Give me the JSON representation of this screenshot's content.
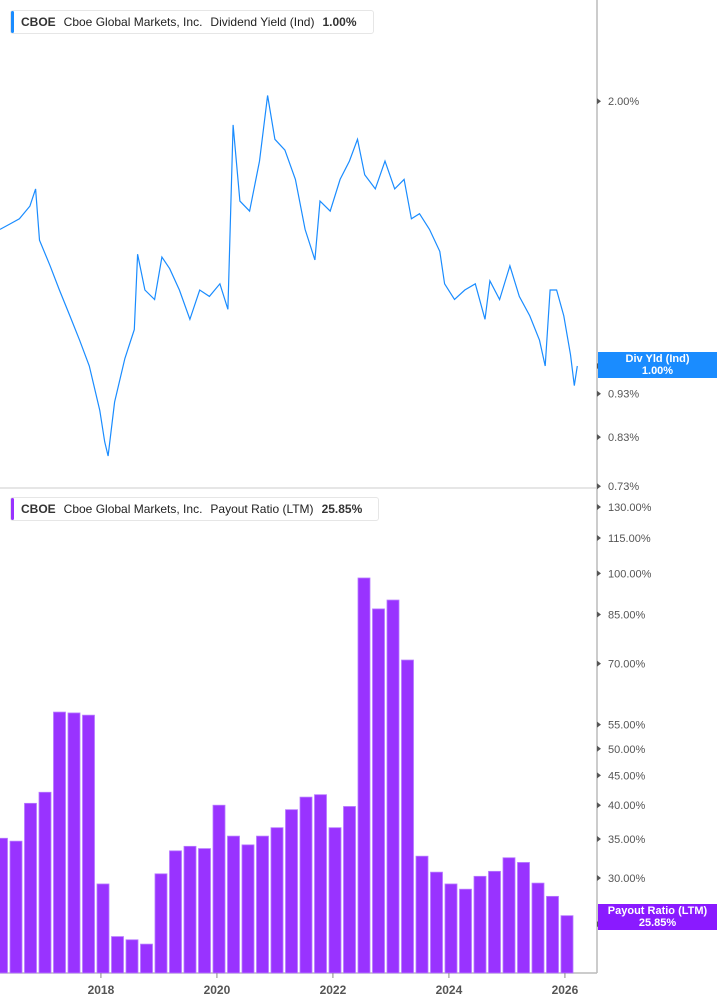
{
  "top_legend": {
    "ticker": "CBOE",
    "company": "Cboe Global Markets, Inc.",
    "metric": "Dividend Yield (Ind)",
    "value": "1.00%",
    "color": "#1a8cff"
  },
  "bottom_legend": {
    "ticker": "CBOE",
    "company": "Cboe Global Markets, Inc.",
    "metric": "Payout Ratio (LTM)",
    "value": "25.85%",
    "color": "#9933ff"
  },
  "top_tag": {
    "label": "Div Yld (Ind)",
    "value": "1.00%"
  },
  "bottom_tag": {
    "label": "Payout Ratio (LTM)",
    "value": "25.85%"
  },
  "chart_data": [
    {
      "type": "line",
      "scale": "log",
      "ylim": [
        0.73,
        2.1
      ],
      "yticks": [
        {
          "v": 2.0,
          "label": "2.00%"
        },
        {
          "v": 1.0,
          "label": "1.00%"
        },
        {
          "v": 0.93,
          "label": "0.93%"
        },
        {
          "v": 0.83,
          "label": "0.83%"
        },
        {
          "v": 0.73,
          "label": "0.73%"
        }
      ],
      "series": [
        {
          "name": "Dividend Yield (Ind)",
          "color": "#1a8cff",
          "points": [
            [
              "2016-04-05",
              1.43
            ],
            [
              "2016-06-05",
              1.45
            ],
            [
              "2016-08-05",
              1.47
            ],
            [
              "2016-10-10",
              1.52
            ],
            [
              "2016-11-15",
              1.59
            ],
            [
              "2016-12-10",
              1.39
            ],
            [
              "2017-02-15",
              1.3
            ],
            [
              "2017-04-15",
              1.22
            ],
            [
              "2017-06-20",
              1.14
            ],
            [
              "2017-08-20",
              1.07
            ],
            [
              "2017-10-20",
              1.0
            ],
            [
              "2017-12-25",
              0.89
            ],
            [
              "2018-01-25",
              0.82
            ],
            [
              "2018-02-15",
              0.79
            ],
            [
              "2018-03-28",
              0.91
            ],
            [
              "2018-06-01",
              1.02
            ],
            [
              "2018-07-30",
              1.1
            ],
            [
              "2018-08-20",
              1.34
            ],
            [
              "2018-10-05",
              1.22
            ],
            [
              "2018-12-05",
              1.19
            ],
            [
              "2019-01-20",
              1.33
            ],
            [
              "2019-03-10",
              1.29
            ],
            [
              "2019-05-10",
              1.22
            ],
            [
              "2019-07-15",
              1.13
            ],
            [
              "2019-09-15",
              1.22
            ],
            [
              "2019-11-15",
              1.2
            ],
            [
              "2020-01-20",
              1.24
            ],
            [
              "2020-03-10",
              1.16
            ],
            [
              "2020-04-12",
              1.88
            ],
            [
              "2020-05-25",
              1.54
            ],
            [
              "2020-07-25",
              1.5
            ],
            [
              "2020-09-25",
              1.71
            ],
            [
              "2020-11-15",
              2.03
            ],
            [
              "2021-01-01",
              1.81
            ],
            [
              "2021-03-05",
              1.76
            ],
            [
              "2021-05-10",
              1.63
            ],
            [
              "2021-07-10",
              1.43
            ],
            [
              "2021-09-10",
              1.32
            ],
            [
              "2021-10-12",
              1.54
            ],
            [
              "2021-12-15",
              1.5
            ],
            [
              "2022-02-15",
              1.63
            ],
            [
              "2022-04-15",
              1.71
            ],
            [
              "2022-06-05",
              1.81
            ],
            [
              "2022-07-20",
              1.65
            ],
            [
              "2022-09-25",
              1.59
            ],
            [
              "2022-11-25",
              1.71
            ],
            [
              "2023-01-25",
              1.59
            ],
            [
              "2023-03-25",
              1.63
            ],
            [
              "2023-05-10",
              1.47
            ],
            [
              "2023-06-30",
              1.49
            ],
            [
              "2023-09-01",
              1.43
            ],
            [
              "2023-11-05",
              1.35
            ],
            [
              "2023-12-05",
              1.24
            ],
            [
              "2024-02-05",
              1.19
            ],
            [
              "2024-04-10",
              1.22
            ],
            [
              "2024-06-15",
              1.24
            ],
            [
              "2024-08-15",
              1.13
            ],
            [
              "2024-09-15",
              1.25
            ],
            [
              "2024-11-15",
              1.19
            ],
            [
              "2025-01-20",
              1.3
            ],
            [
              "2025-03-20",
              1.2
            ],
            [
              "2025-05-25",
              1.14
            ],
            [
              "2025-07-25",
              1.07
            ],
            [
              "2025-08-30",
              1.0
            ],
            [
              "2025-09-30",
              1.22
            ],
            [
              "2025-11-10",
              1.22
            ],
            [
              "2025-12-25",
              1.14
            ],
            [
              "2026-02-05",
              1.03
            ],
            [
              "2026-03-01",
              0.95
            ],
            [
              "2026-03-20",
              1.0
            ]
          ]
        }
      ]
    },
    {
      "type": "bar",
      "scale": "log",
      "ylim": [
        20.3,
        130
      ],
      "yticks": [
        {
          "v": 130,
          "label": "130.00%"
        },
        {
          "v": 115,
          "label": "115.00%"
        },
        {
          "v": 100,
          "label": "100.00%"
        },
        {
          "v": 85,
          "label": "85.00%"
        },
        {
          "v": 70,
          "label": "70.00%"
        },
        {
          "v": 55,
          "label": "55.00%"
        },
        {
          "v": 50,
          "label": "50.00%"
        },
        {
          "v": 45,
          "label": "45.00%"
        },
        {
          "v": 40,
          "label": "40.00%"
        },
        {
          "v": 35,
          "label": "35.00%"
        },
        {
          "v": 30,
          "label": "30.00%"
        },
        {
          "v": 25,
          "label": "25.00%"
        }
      ],
      "xticks": [
        {
          "v": 2018,
          "label": "2018"
        },
        {
          "v": 2020,
          "label": "2020"
        },
        {
          "v": 2022,
          "label": "2022"
        },
        {
          "v": 2024,
          "label": "2024"
        },
        {
          "v": 2026,
          "label": "2026"
        }
      ],
      "series": [
        {
          "name": "Payout Ratio (LTM)",
          "color": "#9933ff",
          "categories": [
            "2016 Q1",
            "2016 Q2",
            "2016 Q3",
            "2016 Q4",
            "2017 Q1",
            "2017 Q2",
            "2017 Q3",
            "2017 Q4",
            "2018 Q1",
            "2018 Q2",
            "2018 Q3",
            "2018 Q4",
            "2019 Q1",
            "2019 Q2",
            "2019 Q3",
            "2019 Q4",
            "2020 Q1",
            "2020 Q2",
            "2020 Q3",
            "2020 Q4",
            "2021 Q1",
            "2021 Q2",
            "2021 Q3",
            "2021 Q4",
            "2022 Q1",
            "2022 Q2",
            "2022 Q3",
            "2022 Q4",
            "2023 Q1",
            "2023 Q2",
            "2023 Q3",
            "2023 Q4",
            "2024 Q1",
            "2024 Q2",
            "2024 Q3",
            "2024 Q4",
            "2025 Q1",
            "2025 Q2",
            "2025 Q3",
            "2025 Q4"
          ],
          "values": [
            35.1,
            34.7,
            40.3,
            42.1,
            57.8,
            57.6,
            57.1,
            29.3,
            23.8,
            23.5,
            23.1,
            30.5,
            33.4,
            34.0,
            33.7,
            40.0,
            35.4,
            34.2,
            35.4,
            36.6,
            39.3,
            41.3,
            41.7,
            36.6,
            39.8,
            98.2,
            86.9,
            90.0,
            71.0,
            32.7,
            30.7,
            29.3,
            28.7,
            30.2,
            30.8,
            32.5,
            31.9,
            29.4,
            27.9,
            25.85
          ]
        }
      ]
    }
  ]
}
